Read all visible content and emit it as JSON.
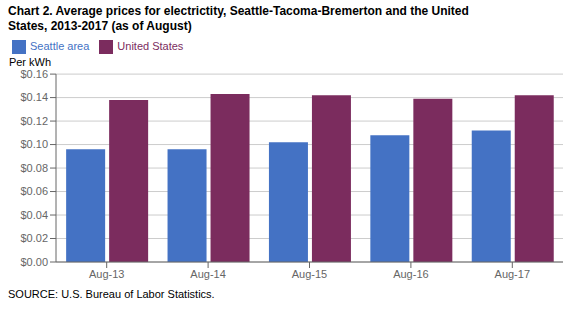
{
  "chart_data": {
    "type": "bar",
    "title": "Chart 2. Average prices for electrictity, Seattle-Tacoma-Bremerton and the United\nStates, 2013-2017  (as of August)",
    "ylabel": "Per kWh",
    "source": "SOURCE: U.S. Bureau of Labor Statistics.",
    "categories": [
      "Aug-13",
      "Aug-14",
      "Aug-15",
      "Aug-16",
      "Aug-17"
    ],
    "series": [
      {
        "name": "Seattle area",
        "color": "#4472C4",
        "values": [
          0.096,
          0.096,
          0.102,
          0.108,
          0.112
        ]
      },
      {
        "name": "United States",
        "color": "#7B2C5E",
        "values": [
          0.138,
          0.143,
          0.142,
          0.139,
          0.142
        ]
      }
    ],
    "ylim": [
      0,
      0.16
    ],
    "yticks": [
      {
        "value": 0,
        "label": "$0.00"
      },
      {
        "value": 0.02,
        "label": "$0.02"
      },
      {
        "value": 0.04,
        "label": "$0.04"
      },
      {
        "value": 0.06,
        "label": "$0.06"
      },
      {
        "value": 0.08,
        "label": "$0.08"
      },
      {
        "value": 0.1,
        "label": "$0.10"
      },
      {
        "value": 0.12,
        "label": "$0.12"
      },
      {
        "value": 0.14,
        "label": "$0.14"
      },
      {
        "value": 0.16,
        "label": "$0.16"
      }
    ],
    "grid": true,
    "legend": "upper left"
  }
}
